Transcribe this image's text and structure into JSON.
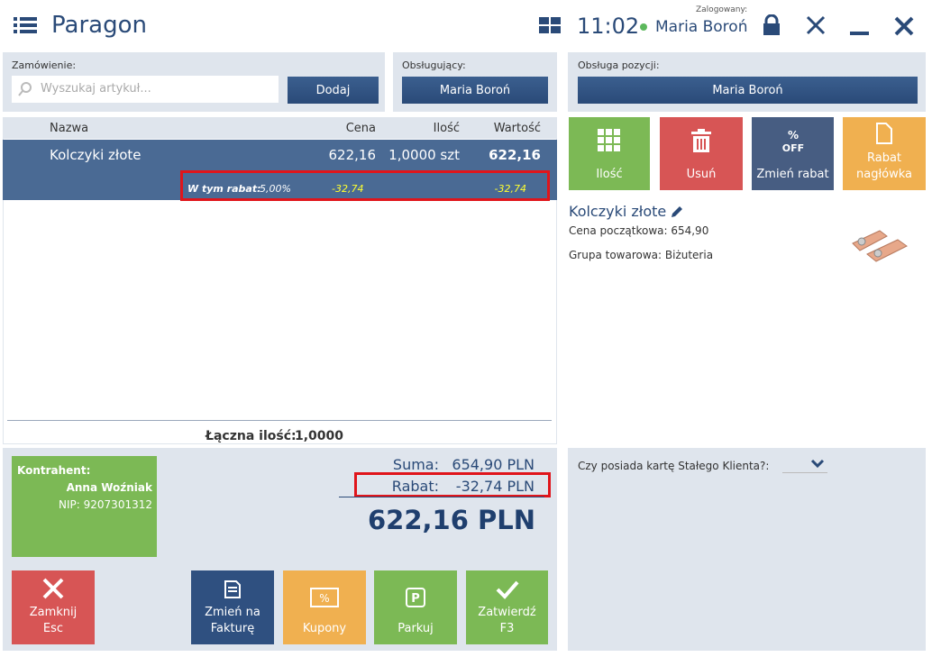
{
  "header": {
    "title": "Paragon",
    "time": "11:02",
    "logged_label": "Zalogowany:",
    "user": "Maria Boroń"
  },
  "order": {
    "label": "Zamówienie:",
    "search_placeholder": "Wyszukaj artykuł...",
    "add_button": "Dodaj"
  },
  "served": {
    "label": "Obsługujący:",
    "button": "Maria Boroń"
  },
  "item_service": {
    "label": "Obsługa pozycji:",
    "button": "Maria Boroń"
  },
  "table": {
    "headers": [
      "Nazwa",
      "Cena",
      "Ilość",
      "Wartość"
    ],
    "rows": [
      [
        "Kolczyki złote",
        "622,16",
        "1,0000 szt",
        "622,16"
      ]
    ],
    "discount": {
      "label": "W tym rabat:",
      "percent": "5,00%",
      "price": "-32,74",
      "value": "-32,74"
    }
  },
  "total_quantity": {
    "label": "Łączna ilość:",
    "value": "1,0000"
  },
  "contractor": {
    "label": "Kontrahent:",
    "name": "Anna Woźniak",
    "nip": "NIP: 9207301312"
  },
  "summary": {
    "sum_label": "Suma:",
    "sum": "654,90 PLN",
    "discount_label": "Rabat:",
    "discount": "-32,74 PLN",
    "total": "622,16 PLN"
  },
  "bottom_buttons": [
    {
      "lines": [
        "Zamknij",
        "Esc"
      ]
    },
    {
      "lines": [
        "Zmień na",
        "Fakturę"
      ]
    },
    {
      "lines": [
        "Kupony"
      ]
    },
    {
      "lines": [
        "Parkuj"
      ]
    },
    {
      "lines": [
        "Zatwierdź",
        "F3"
      ]
    }
  ],
  "action_tiles": [
    {
      "lines": [
        "Ilość"
      ]
    },
    {
      "lines": [
        "Usuń"
      ]
    },
    {
      "lines": [
        "Zmień rabat"
      ]
    },
    {
      "lines": [
        "Rabat",
        "nagłówka"
      ]
    }
  ],
  "product": {
    "name": "Kolczyki złote",
    "initial_price": "Cena początkowa: 654,90",
    "group": "Grupa towarowa: Biżuteria"
  },
  "loyalty": {
    "question": "Czy posiada kartę Stałego Klienta?:"
  }
}
